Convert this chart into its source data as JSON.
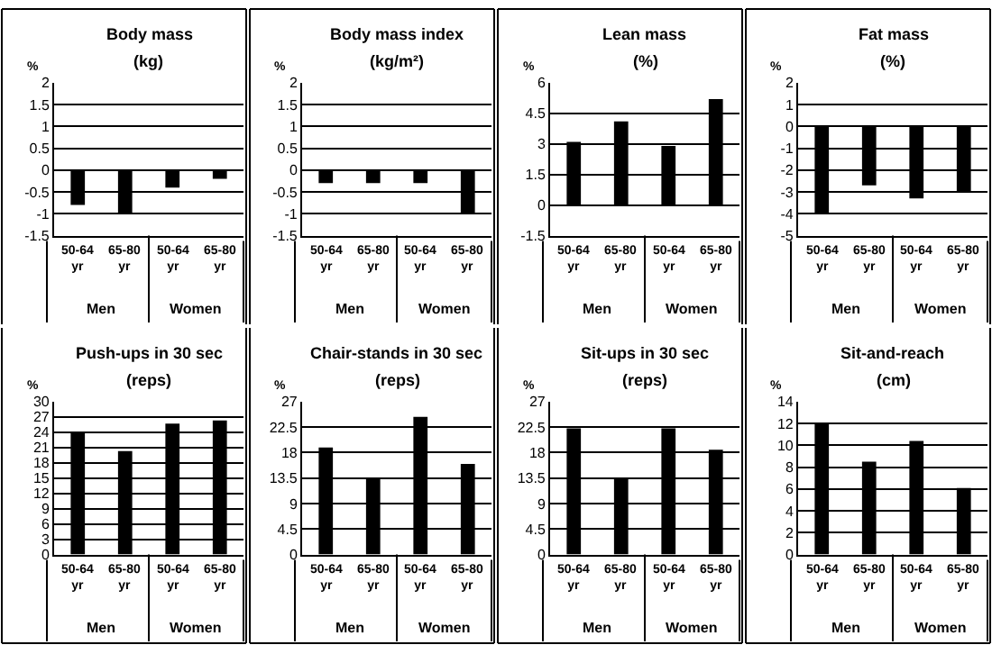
{
  "chart_data": [
    {
      "type": "bar",
      "title": "Body mass",
      "subtitle": "(kg)",
      "ylabel": "%",
      "categories": [
        "50-64 yr",
        "65-80 yr",
        "50-64 yr",
        "65-80 yr"
      ],
      "values": [
        -0.8,
        -1.0,
        -0.4,
        -0.2
      ],
      "color": "#000000",
      "ylim": [
        -1.5,
        2
      ],
      "yticks": [
        -1.5,
        -1,
        -0.5,
        0,
        0.5,
        1,
        1.5,
        2
      ],
      "grid": "y",
      "annotations": [
        "Men",
        "Women"
      ]
    },
    {
      "type": "bar",
      "title": "Body mass index",
      "subtitle": "(kg/m²)",
      "ylabel": "%",
      "categories": [
        "50-64 yr",
        "65-80 yr",
        "50-64 yr",
        "65-80 yr"
      ],
      "values": [
        -0.3,
        -0.3,
        -0.3,
        -1.0
      ],
      "color": "#000000",
      "ylim": [
        -1.5,
        2
      ],
      "yticks": [
        -1.5,
        -1,
        -0.5,
        0,
        0.5,
        1,
        1.5,
        2
      ],
      "grid": "y",
      "annotations": [
        "Men",
        "Women"
      ]
    },
    {
      "type": "bar",
      "title": "Lean mass",
      "subtitle": "(%)",
      "ylabel": "%",
      "categories": [
        "50-64 yr",
        "65-80 yr",
        "50-64 yr",
        "65-80 yr"
      ],
      "values": [
        3.1,
        4.1,
        2.9,
        5.2
      ],
      "color": "#000000",
      "ylim": [
        -1.5,
        6
      ],
      "yticks": [
        -1.5,
        0,
        1.5,
        3,
        4.5,
        6
      ],
      "grid": "y",
      "annotations": [
        "Men",
        "Women"
      ]
    },
    {
      "type": "bar",
      "title": "Fat mass",
      "subtitle": "(%)",
      "ylabel": "%",
      "categories": [
        "50-64 yr",
        "65-80 yr",
        "50-64 yr",
        "65-80 yr"
      ],
      "values": [
        -4.0,
        -2.7,
        -3.3,
        -3.0
      ],
      "color": "#000000",
      "ylim": [
        -5,
        2
      ],
      "yticks": [
        -5,
        -4,
        -3,
        -2,
        -1,
        0,
        1,
        2
      ],
      "grid": "y",
      "annotations": [
        "Men",
        "Women"
      ]
    },
    {
      "type": "bar",
      "title": "Push-ups in 30 sec",
      "subtitle": "(reps)",
      "ylabel": "%",
      "categories": [
        "50-64 yr",
        "65-80 yr",
        "50-64 yr",
        "65-80 yr"
      ],
      "values": [
        24.0,
        20.3,
        25.7,
        26.3
      ],
      "color": "#000000",
      "ylim": [
        0,
        30
      ],
      "yticks": [
        0,
        3,
        6,
        9,
        12,
        15,
        18,
        21,
        24,
        27,
        30
      ],
      "grid": "y",
      "annotations": [
        "Men",
        "Women"
      ]
    },
    {
      "type": "bar",
      "title": "Chair-stands in 30 sec",
      "subtitle": "(reps)",
      "ylabel": "%",
      "categories": [
        "50-64 yr",
        "65-80 yr",
        "50-64 yr",
        "65-80 yr"
      ],
      "values": [
        18.9,
        13.6,
        24.3,
        16.0
      ],
      "color": "#000000",
      "ylim": [
        0,
        27
      ],
      "yticks": [
        0,
        4.5,
        9,
        13.5,
        18,
        22.5,
        27
      ],
      "grid": "y",
      "annotations": [
        "Men",
        "Women"
      ]
    },
    {
      "type": "bar",
      "title": "Sit-ups in 30 sec",
      "subtitle": "(reps)",
      "ylabel": "%",
      "categories": [
        "50-64 yr",
        "65-80 yr",
        "50-64 yr",
        "65-80 yr"
      ],
      "values": [
        22.3,
        13.4,
        22.3,
        18.5
      ],
      "color": "#000000",
      "ylim": [
        0,
        27
      ],
      "yticks": [
        0,
        4.5,
        9,
        13.5,
        18,
        22.5,
        27
      ],
      "grid": "y",
      "annotations": [
        "Men",
        "Women"
      ]
    },
    {
      "type": "bar",
      "title": "Sit-and-reach",
      "subtitle": "(cm)",
      "ylabel": "%",
      "categories": [
        "50-64 yr",
        "65-80 yr",
        "50-64 yr",
        "65-80 yr"
      ],
      "values": [
        12.0,
        8.5,
        10.4,
        6.1
      ],
      "color": "#000000",
      "ylim": [
        0,
        14
      ],
      "yticks": [
        0,
        2,
        4,
        6,
        8,
        10,
        12,
        14
      ],
      "grid": "y",
      "annotations": [
        "Men",
        "Women"
      ]
    }
  ]
}
